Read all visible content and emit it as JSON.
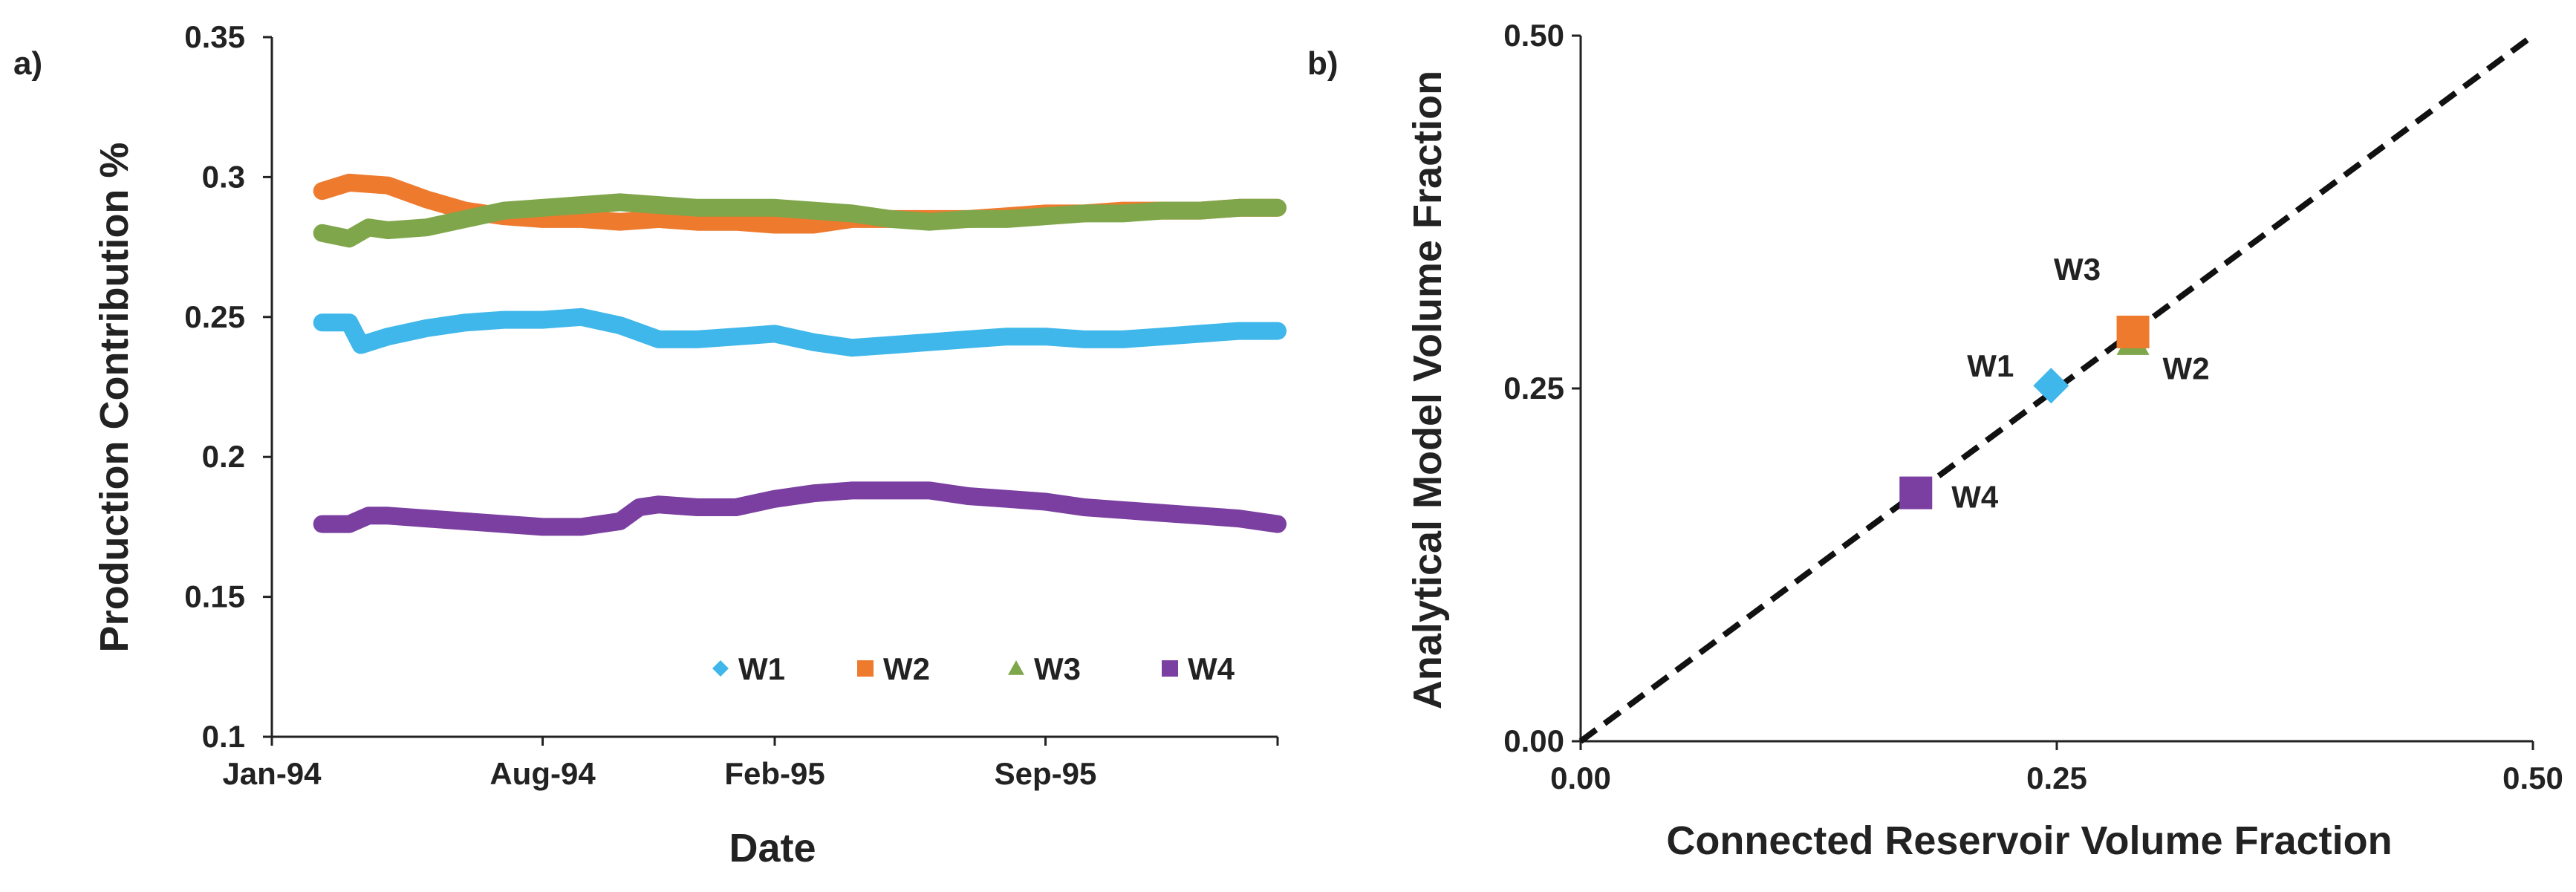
{
  "panel_labels": {
    "a": "a)",
    "b": "b)"
  },
  "chart_data": [
    {
      "type": "line",
      "title": "",
      "xlabel": "Date",
      "ylabel": "Production Contribution %",
      "x_ticks": [
        {
          "label": "Jan-94",
          "month": 0
        },
        {
          "label": "Aug-94",
          "month": 7
        },
        {
          "label": "Feb-95",
          "month": 13
        },
        {
          "label": "Sep-95",
          "month": 20
        }
      ],
      "xlim": [
        0,
        26
      ],
      "y_ticks": [
        "0.1",
        "0.15",
        "0.2",
        "0.25",
        "0.3",
        "0.35"
      ],
      "ylim": [
        0.1,
        0.35
      ],
      "legend": {
        "placement": "bottom-right"
      },
      "series": [
        {
          "name": "W1",
          "color": "#3fb7ea",
          "marker": "diamond",
          "x": [
            1.3,
            2.0,
            2.3,
            3,
            4,
            5,
            6,
            7,
            8,
            9,
            10,
            11,
            12,
            13,
            14,
            15,
            16,
            17,
            18,
            19,
            20,
            21,
            22,
            23,
            24,
            25,
            26
          ],
          "y": [
            0.248,
            0.248,
            0.24,
            0.243,
            0.246,
            0.248,
            0.249,
            0.249,
            0.25,
            0.247,
            0.242,
            0.242,
            0.243,
            0.244,
            0.241,
            0.239,
            0.24,
            0.241,
            0.242,
            0.243,
            0.243,
            0.242,
            0.242,
            0.243,
            0.244,
            0.245,
            0.245
          ]
        },
        {
          "name": "W2",
          "color": "#ee7a2e",
          "marker": "square",
          "x": [
            1.3,
            2,
            3,
            4,
            5,
            6,
            7,
            8,
            9,
            10,
            11,
            12,
            13,
            14,
            15,
            16,
            17,
            18,
            19,
            20,
            21,
            22,
            23,
            24,
            25,
            26
          ],
          "y": [
            0.295,
            0.298,
            0.297,
            0.292,
            0.288,
            0.286,
            0.285,
            0.285,
            0.284,
            0.285,
            0.284,
            0.284,
            0.283,
            0.283,
            0.285,
            0.285,
            0.285,
            0.285,
            0.286,
            0.287,
            0.287,
            0.288,
            0.288,
            0.288,
            0.289,
            0.289
          ]
        },
        {
          "name": "W3",
          "color": "#7fa64a",
          "marker": "triangle",
          "x": [
            1.3,
            2,
            2.5,
            3,
            4,
            5,
            6,
            7,
            8,
            9,
            10,
            11,
            12,
            13,
            14,
            15,
            16,
            17,
            18,
            19,
            20,
            21,
            22,
            23,
            24,
            25,
            26
          ],
          "y": [
            0.28,
            0.278,
            0.282,
            0.281,
            0.282,
            0.285,
            0.288,
            0.289,
            0.29,
            0.291,
            0.29,
            0.289,
            0.289,
            0.289,
            0.288,
            0.287,
            0.285,
            0.284,
            0.285,
            0.285,
            0.286,
            0.287,
            0.287,
            0.288,
            0.288,
            0.289,
            0.289
          ]
        },
        {
          "name": "W4",
          "color": "#7a3fa0",
          "marker": "square",
          "x": [
            1.3,
            2.0,
            2.5,
            3,
            4,
            5,
            6,
            7,
            8,
            9,
            9.5,
            10,
            11,
            12,
            13,
            14,
            15,
            16,
            17,
            18,
            19,
            20,
            21,
            22,
            23,
            24,
            25,
            26
          ],
          "y": [
            0.176,
            0.176,
            0.179,
            0.179,
            0.178,
            0.177,
            0.176,
            0.175,
            0.175,
            0.177,
            0.182,
            0.183,
            0.182,
            0.182,
            0.185,
            0.187,
            0.188,
            0.188,
            0.188,
            0.186,
            0.185,
            0.184,
            0.182,
            0.181,
            0.18,
            0.179,
            0.178,
            0.176
          ]
        }
      ]
    },
    {
      "type": "scatter",
      "title": "",
      "xlabel": "Connected Reservoir Volume Fraction",
      "ylabel": "Analytical Model Volume Fraction",
      "xlim": [
        0,
        0.5
      ],
      "ylim": [
        0,
        0.5
      ],
      "x_ticks": [
        "0.00",
        "0.25",
        "0.50"
      ],
      "y_ticks": [
        "0.00",
        "0.25",
        "0.50"
      ],
      "reference_line": {
        "style": "dashed",
        "from": [
          0,
          0
        ],
        "to": [
          0.5,
          0.5
        ],
        "color": "#111111"
      },
      "points": [
        {
          "name": "W1",
          "x": 0.247,
          "y": 0.252,
          "color": "#3fb7ea",
          "marker": "diamond",
          "label_side": "left"
        },
        {
          "name": "W2",
          "x": 0.29,
          "y": 0.283,
          "color": "#7fa64a",
          "marker": "triangle",
          "label_side": "bottom-right"
        },
        {
          "name": "W3",
          "x": 0.29,
          "y": 0.29,
          "color": "#ee7a2e",
          "marker": "square",
          "label_side": "top"
        },
        {
          "name": "W4",
          "x": 0.176,
          "y": 0.176,
          "color": "#7a3fa0",
          "marker": "square",
          "label_side": "right"
        }
      ]
    }
  ]
}
